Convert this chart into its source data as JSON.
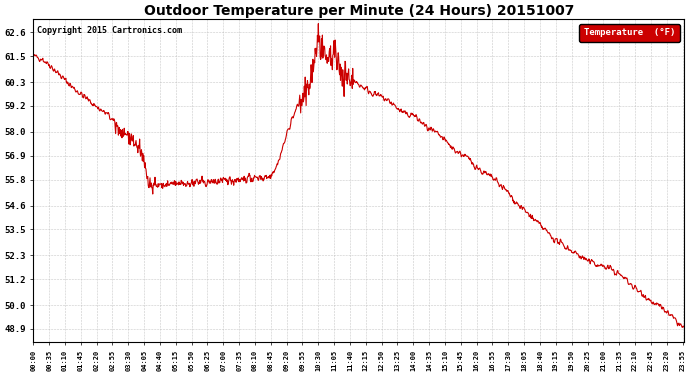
{
  "title": "Outdoor Temperature per Minute (24 Hours) 20151007",
  "copyright": "Copyright 2015 Cartronics.com",
  "legend_label": "Temperature  (°F)",
  "line_color": "#cc0000",
  "bg_color": "#ffffff",
  "grid_color": "#bbbbbb",
  "yticks": [
    48.9,
    50.0,
    51.2,
    52.3,
    53.5,
    54.6,
    55.8,
    56.9,
    58.0,
    59.2,
    60.3,
    61.5,
    62.6
  ],
  "ylim": [
    48.3,
    63.2
  ],
  "num_points": 1440,
  "tick_interval_minutes": 35,
  "keypoints": [
    [
      0.0,
      61.5
    ],
    [
      0.3,
      61.4
    ],
    [
      0.6,
      61.1
    ],
    [
      1.0,
      60.6
    ],
    [
      1.5,
      60.0
    ],
    [
      2.0,
      59.5
    ],
    [
      2.5,
      59.0
    ],
    [
      2.75,
      58.8
    ],
    [
      3.0,
      58.4
    ],
    [
      3.25,
      58.0
    ],
    [
      3.5,
      57.8
    ],
    [
      3.75,
      57.5
    ],
    [
      4.0,
      57.0
    ],
    [
      4.1,
      56.5
    ],
    [
      4.2,
      55.8
    ],
    [
      4.25,
      55.55
    ],
    [
      4.5,
      55.5
    ],
    [
      5.0,
      55.55
    ],
    [
      5.5,
      55.6
    ],
    [
      6.0,
      55.65
    ],
    [
      6.5,
      55.7
    ],
    [
      7.0,
      55.75
    ],
    [
      7.5,
      55.8
    ],
    [
      8.0,
      55.85
    ],
    [
      8.5,
      55.9
    ],
    [
      8.75,
      56.0
    ],
    [
      9.0,
      56.5
    ],
    [
      9.25,
      57.5
    ],
    [
      9.5,
      58.5
    ],
    [
      9.75,
      59.2
    ],
    [
      10.0,
      59.5
    ],
    [
      10.25,
      60.5
    ],
    [
      10.4,
      61.5
    ],
    [
      10.5,
      62.4
    ],
    [
      10.6,
      62.0
    ],
    [
      10.75,
      61.2
    ],
    [
      11.0,
      61.5
    ],
    [
      11.1,
      61.8
    ],
    [
      11.2,
      61.2
    ],
    [
      11.4,
      60.7
    ],
    [
      11.6,
      60.5
    ],
    [
      12.0,
      60.2
    ],
    [
      12.5,
      59.8
    ],
    [
      13.0,
      59.5
    ],
    [
      13.25,
      59.3
    ],
    [
      13.5,
      59.0
    ],
    [
      13.75,
      58.8
    ],
    [
      14.0,
      58.8
    ],
    [
      14.25,
      58.5
    ],
    [
      14.5,
      58.2
    ],
    [
      14.75,
      58.0
    ],
    [
      15.0,
      57.8
    ],
    [
      15.25,
      57.5
    ],
    [
      15.5,
      57.2
    ],
    [
      15.75,
      57.0
    ],
    [
      16.0,
      56.8
    ],
    [
      16.25,
      56.5
    ],
    [
      16.5,
      56.2
    ],
    [
      16.75,
      56.0
    ],
    [
      17.0,
      55.8
    ],
    [
      17.25,
      55.5
    ],
    [
      17.5,
      55.2
    ],
    [
      17.75,
      54.8
    ],
    [
      18.0,
      54.5
    ],
    [
      18.25,
      54.2
    ],
    [
      18.5,
      53.9
    ],
    [
      18.75,
      53.6
    ],
    [
      19.0,
      53.3
    ],
    [
      19.25,
      53.0
    ],
    [
      19.5,
      52.8
    ],
    [
      19.75,
      52.6
    ],
    [
      20.0,
      52.4
    ],
    [
      20.25,
      52.2
    ],
    [
      20.5,
      52.0
    ],
    [
      20.75,
      51.9
    ],
    [
      21.0,
      51.8
    ],
    [
      21.25,
      51.7
    ],
    [
      21.5,
      51.5
    ],
    [
      21.75,
      51.3
    ],
    [
      22.0,
      51.0
    ],
    [
      22.25,
      50.7
    ],
    [
      22.5,
      50.5
    ],
    [
      22.75,
      50.2
    ],
    [
      23.0,
      50.0
    ],
    [
      23.25,
      49.8
    ],
    [
      23.5,
      49.5
    ],
    [
      23.75,
      49.2
    ],
    [
      24.0,
      48.9
    ]
  ]
}
